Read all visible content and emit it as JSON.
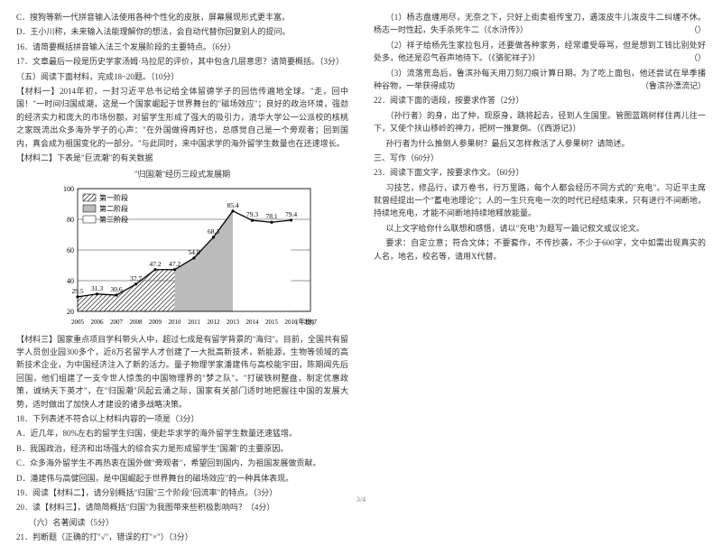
{
  "left": {
    "optC": "C．搜狗等新一代拼音输入法使用各种个性化的皮肤，屏幕展现形式更丰富。",
    "optD": "D．王小川称，未来输入法能理解你的想法，会自动代替你回复别人的提问。",
    "q16": "16．请简要概括拼音输入法三个发展阶段的主要特点。（6分）",
    "q17": "17．文章最后一段是历史学家汤姆·马拉尼的评价，其中包含几层意思？请简要概括。（3分）",
    "sec5": "（五）阅读下面材料，完成18~20题。（10分）",
    "matA": "【材料一】2014年初，一封习近平总书记给全体留德学子的回信传遍地全球。\"走，回中国！\"一时间归国成潮，这是一个国家崛起于世界舞台的\"磁场效应\"；良好的政治环境，强劲的经济实力和庞大的市场份额，对留学生形成了强大的吸引力，清华大学公一公派校的核桃之家既流出众多海外学子的心声：\"在外国做得再好也，总感觉自己是一个旁观者；回到国内，真会成为祖国变化的一部分。\"与此同时，来中国求学的海外留学生数量也在还速增长。",
    "matB": "【材料二】下表是\"巨流潮\"的有关数据",
    "chartTitle": "\"归国潮\"经历三段式发展期",
    "matC": "【材料三】国家重点项目学科带头人中，超过七成是有留学背景的\"海归\"。目前，全国共有留学人员创业园300多个，近8万名留学人才创建了一大批高新技术，新能源，生物等领域的高新技术企业，为中国经济注入了新的活力。量子物理学家潘建伟与高校能宇田，陈期闻先后回国，他们组建了一支令世人惊羡的中国物理界的\"梦之队\"。\"打破铁树整盘，制定优惠政策，诚纳天下英才\"，在\"归国潮\"风起云涌之际，国家有关部门适时地把握往中国的发展大势，适时做出了加快人才建设的诸多战略决策。",
    "q18": "18．下列表述不符合以上材料内容的一项是（3分）",
    "q18a": "A．近几年，80%左右的留学生归国，使赴华求学的海外留学生数量还速猛增。",
    "q18b": "B．我国政治，经济和出场强大的综合实力是形成留学生\"国潮\"的主要原因。",
    "q18c": "C．众多海外留学生不再热衷在国外做\"旁观者\"，希望回到国内，为祖国发展做贡献。",
    "q18d": "D．潘建伟与高健回国，是中国崛起于世界舞台的磁场效应\"的一种具体表现。",
    "q19": "19．阅读【材料二】，请分别概括\"归国\"三个阶段\"回流率\"的特点。（3分）",
    "q20": "20．读【材料三】，请简简概括\"归国\"为我图带来些积极影响吗？（4分）",
    "sec6": "（六）名著阅读（5分）",
    "q21": "21．判断题（正确的打\"√\"，错误的打\"×\"）（3分）"
  },
  "right": {
    "r1a": "（1）杨志盘缠用尽，无奈之下，只好上街卖祖传宝刀，遇泼皮牛儿泼皮牛二纠缠不休。杨志一时性起，失手杀死牛二（《水浒传》）",
    "r1b": "（）",
    "r2a": "（2）祥子给杨先生家拉包月，还要做各种家务，经常遭受辱骂，但是想到工钱比别处好处多，他还是忍气吞声地待下。（《骆驼祥子》）",
    "r2b": "（）",
    "r3a": "（3）流落荒岛后，鲁滨孙每天用刀刻刀痕计算日期。为了吃上面包，他还尝试在旱季播种谷物，一举获得成功",
    "r3b": "（鲁滨孙漂流记）",
    "q22": "22．阅读下面的语段，按要求作答（2分）",
    "q22p": "（孙行者）的身，出了仲，现原身，跳将起去，径到人生国里。管图蓝跳树样住再儿往一下，又使个扶山移岭的神力，把树一推复倒。（《西游记》）",
    "q22q": "孙行者为什么推倒人参果树？最后又怎样救活了人参果树？请简述。",
    "sec3": "三、写作（60分）",
    "q23": "23．阅读下面文字，按要求作文。（60分）",
    "w1": "习技艺，修品行，读万卷书，行万里路，每个人都会经历不同方式的\"充电\"。习近平主席就曾经提出一个\"蓄电池理论\"；人的一生只充电一次的时代已经结束来，只有进行不间断地，持续地充电，才能不间断地持续地释放能量。",
    "w2": "以上文字给你什么联想和感悟，请以\"充电\"为题写一篇记叙文或议论文。",
    "w3": "要求：自定立意；符合文体；不要套作，不传抄袭，不少于600字，文中如需出现真实的人名，地名，校名等，请用X代替。"
  },
  "chart": {
    "type": "line-with-fill-bands",
    "bg": "#ffffff",
    "years": [
      2005,
      2006,
      2007,
      2008,
      2009,
      2010,
      2011,
      2012,
      2013,
      2014,
      2015,
      2016,
      2017
    ],
    "values": [
      29.5,
      31.3,
      30.6,
      37.7,
      47.2,
      47.2,
      54.8,
      68.3,
      85.4,
      79.3,
      78.1,
      79.4,
      null
    ],
    "yRange": [
      20,
      100
    ],
    "yStep": 20,
    "legend": [
      "第一阶段",
      "第二阶段",
      "第三阶段"
    ],
    "band1End": 5,
    "band2End": 8,
    "lineColor": "#000",
    "fill1": "hatch",
    "fill2": "#bbb",
    "fill3": "#fff",
    "hatchColor": "#444",
    "fontSize": 8
  },
  "pageNum": "3/4"
}
